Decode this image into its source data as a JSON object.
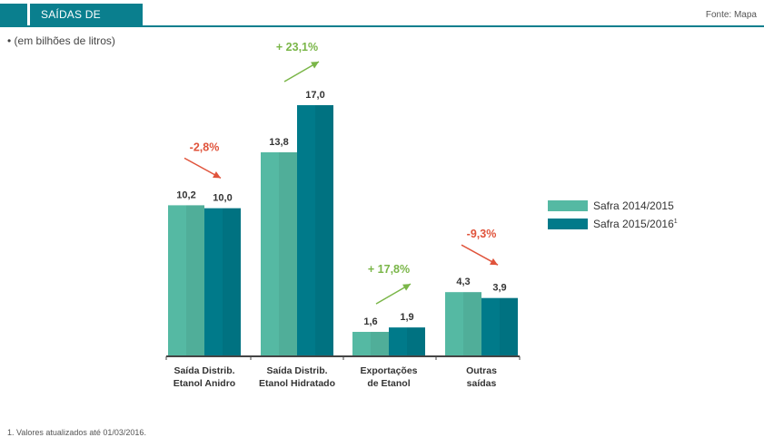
{
  "header": {
    "title": "SAÍDAS DE ETANOL",
    "source": "Fonte: Mapa"
  },
  "unit_note": "• (em bilhões de litros)",
  "footnote": "1. Valores atualizados até 01/03/2016.",
  "colors": {
    "series1": "#55b9a3",
    "series2": "#007a8a",
    "up": "#7ab648",
    "down": "#e0533b",
    "header": "#0a7f8e"
  },
  "chart_data": {
    "type": "bar",
    "categories": [
      [
        "Saída Distrib.",
        "Etanol Anidro"
      ],
      [
        "Saída Distrib.",
        "Etanol Hidratado"
      ],
      [
        "Exportações",
        "de Etanol"
      ],
      [
        "Outras",
        "saídas"
      ]
    ],
    "series": [
      {
        "name": "Safra 2014/2015",
        "values": [
          10.2,
          13.8,
          1.6,
          4.3
        ],
        "labels": [
          "10,2",
          "13,8",
          "1,6",
          "4,3"
        ]
      },
      {
        "name": "Safra 2015/2016",
        "name_sup": "1",
        "values": [
          10.0,
          17.0,
          1.9,
          3.9
        ],
        "labels": [
          "10,0",
          "17,0",
          "1,9",
          "3,9"
        ]
      }
    ],
    "changes": [
      {
        "label": "-2,8%",
        "direction": "down"
      },
      {
        "label": "+ 23,1%",
        "direction": "up"
      },
      {
        "label": "+ 17,8%",
        "direction": "up"
      },
      {
        "label": "-9,3%",
        "direction": "down"
      }
    ],
    "ylim": [
      0,
      17
    ],
    "legend_position": "right"
  }
}
